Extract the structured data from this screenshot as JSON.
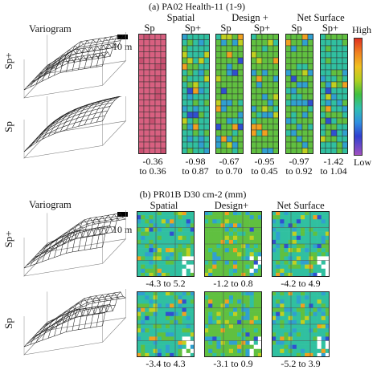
{
  "panel_a": {
    "title": "(a) PA02 Health-11 (1-9)",
    "variogram_label": "Variogram",
    "scale_label": "10 m",
    "row_labels": [
      "Sp+",
      "Sp"
    ],
    "groups": [
      "Spatial",
      "Design +",
      "Net Surface"
    ],
    "columns": [
      {
        "label": "Sp",
        "range_from": "-0.36",
        "range_to": "to 0.36"
      },
      {
        "label": "Sp+",
        "range_from": "-0.98",
        "range_to": "to 0.87"
      },
      {
        "label": "Sp",
        "range_from": "-0.67",
        "range_to": "to 0.70"
      },
      {
        "label": "Sp+",
        "range_from": "-0.95",
        "range_to": "to 0.45"
      },
      {
        "label": "Sp",
        "range_from": "-0.97",
        "range_to": "to 0.92"
      },
      {
        "label": "Sp+",
        "range_from": "-1.42",
        "range_to": "to 1.04"
      }
    ],
    "colorbar": {
      "high": "High",
      "low": "Low"
    }
  },
  "panel_b": {
    "title": "(b) PR01B D30 cm-2 (mm)",
    "variogram_label": "Variogram",
    "scale_label": "10 m",
    "row_labels": [
      "Sp+",
      "Sp"
    ],
    "groups": [
      "Spatial",
      "Design+",
      "Net Surface"
    ],
    "ranges_top": [
      "-4.3 to 5.2",
      "-1.2 to 0.8",
      "-4.2 to 4.9"
    ],
    "ranges_bottom": [
      "-3.4 to 4.3",
      "-3.1 to 0.9",
      "-5.2 to 3.9"
    ]
  },
  "colors": {
    "background": "#ffffff",
    "palette": [
      "#c060c0",
      "#3050d0",
      "#30a0d0",
      "#30c0a0",
      "#60c040",
      "#c0d020",
      "#f0a020",
      "#e03020"
    ]
  }
}
